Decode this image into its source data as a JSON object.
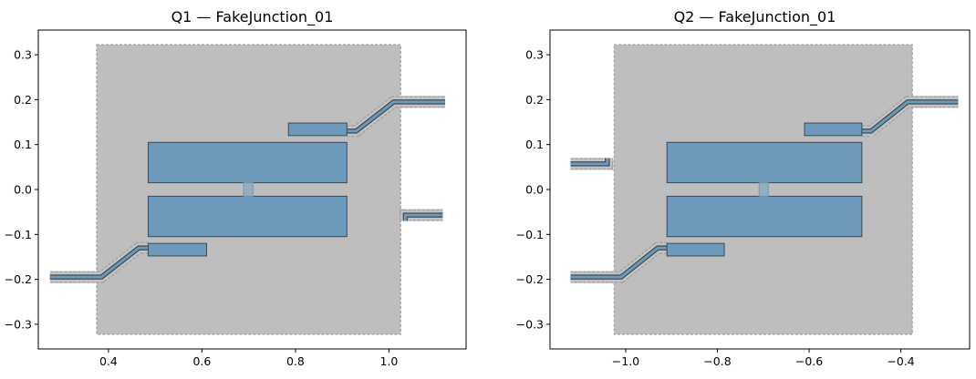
{
  "chart_data": [
    {
      "type": "layout",
      "title": "Q1 — FakeJunction_01",
      "xlim": [
        0.25,
        1.165
      ],
      "ylim": [
        -0.355,
        0.355
      ],
      "xticks": [
        0.4,
        0.6,
        0.8,
        1.0
      ],
      "xtick_labels": [
        "0.4",
        "0.6",
        "0.8",
        "1.0"
      ],
      "yticks": [
        0.3,
        0.2,
        0.1,
        0.0,
        -0.1,
        -0.2,
        -0.3
      ],
      "ytick_labels": [
        "0.3",
        "0.2",
        "0.1",
        "0.0",
        "−0.1",
        "−0.2",
        "−0.3"
      ],
      "ground_plane": {
        "x0": 0.375,
        "x1": 1.025,
        "y0": -0.3225,
        "y1": 0.3225
      },
      "pads": [
        {
          "name": "top-pad",
          "x0": 0.485,
          "x1": 0.91,
          "y0": 0.015,
          "y1": 0.105
        },
        {
          "name": "bottom-pad",
          "x0": 0.485,
          "x1": 0.91,
          "y0": -0.105,
          "y1": -0.015
        },
        {
          "name": "upper-coupler",
          "x0": 0.785,
          "x1": 0.91,
          "y0": 0.12,
          "y1": 0.148
        },
        {
          "name": "lower-coupler",
          "x0": 0.485,
          "x1": 0.61,
          "y0": -0.148,
          "y1": -0.12
        }
      ],
      "junction": {
        "x0": 0.689,
        "x1": 0.709,
        "y0": -0.015,
        "y1": 0.015
      },
      "traces": [
        {
          "name": "upper-trace",
          "points": [
            [
              0.91,
              0.13
            ],
            [
              0.93,
              0.13
            ],
            [
              1.01,
              0.195
            ],
            [
              1.12,
              0.195
            ]
          ]
        },
        {
          "name": "lower-trace",
          "points": [
            [
              0.485,
              -0.13
            ],
            [
              0.465,
              -0.13
            ],
            [
              0.385,
              -0.195
            ],
            [
              0.275,
              -0.195
            ]
          ]
        },
        {
          "name": "stub-trace",
          "points": [
            [
              1.035,
              -0.07
            ],
            [
              1.035,
              -0.057
            ],
            [
              1.115,
              -0.057
            ]
          ]
        }
      ]
    },
    {
      "type": "layout",
      "title": "Q2 — FakeJunction_01",
      "xlim": [
        -1.165,
        -0.25
      ],
      "ylim": [
        -0.355,
        0.355
      ],
      "xticks": [
        -1.0,
        -0.8,
        -0.6,
        -0.4
      ],
      "xtick_labels": [
        "−1.0",
        "−0.8",
        "−0.6",
        "−0.4"
      ],
      "yticks": [
        0.3,
        0.2,
        0.1,
        0.0,
        -0.1,
        -0.2,
        -0.3
      ],
      "ytick_labels": [
        "0.3",
        "0.2",
        "0.1",
        "0.0",
        "−0.1",
        "−0.2",
        "−0.3"
      ],
      "ground_plane": {
        "x0": -1.025,
        "x1": -0.375,
        "y0": -0.3225,
        "y1": 0.3225
      },
      "pads": [
        {
          "name": "top-pad",
          "x0": -0.91,
          "x1": -0.485,
          "y0": 0.015,
          "y1": 0.105
        },
        {
          "name": "bottom-pad",
          "x0": -0.91,
          "x1": -0.485,
          "y0": -0.105,
          "y1": -0.015
        },
        {
          "name": "upper-coupler",
          "x0": -0.61,
          "x1": -0.485,
          "y0": 0.12,
          "y1": 0.148
        },
        {
          "name": "lower-coupler",
          "x0": -0.91,
          "x1": -0.785,
          "y0": -0.148,
          "y1": -0.12
        }
      ],
      "junction": {
        "x0": -0.709,
        "x1": -0.689,
        "y0": -0.015,
        "y1": 0.015
      },
      "traces": [
        {
          "name": "upper-trace",
          "points": [
            [
              -0.485,
              0.13
            ],
            [
              -0.465,
              0.13
            ],
            [
              -0.385,
              0.195
            ],
            [
              -0.275,
              0.195
            ]
          ]
        },
        {
          "name": "lower-trace",
          "points": [
            [
              -0.91,
              -0.13
            ],
            [
              -0.93,
              -0.13
            ],
            [
              -1.01,
              -0.195
            ],
            [
              -1.12,
              -0.195
            ]
          ]
        },
        {
          "name": "stub-trace",
          "points": [
            [
              -1.12,
              0.057
            ],
            [
              -1.04,
              0.057
            ],
            [
              -1.04,
              0.07
            ]
          ]
        }
      ]
    }
  ]
}
